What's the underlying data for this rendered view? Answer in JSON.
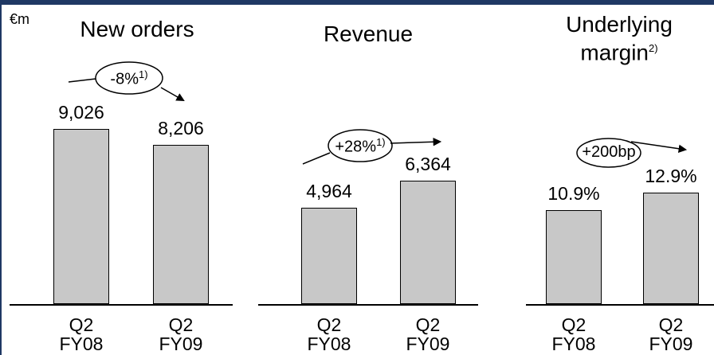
{
  "unit": "€m",
  "chart_data": [
    {
      "type": "bar",
      "title": "New orders",
      "annotation": "-8%",
      "annotation_note": "1)",
      "categories": [
        "Q2 FY08",
        "Q2 FY09"
      ],
      "values": [
        9026,
        8206
      ],
      "value_labels": [
        "9,026",
        "8,206"
      ],
      "color": "#c8c8c8",
      "ylim": [
        0,
        10000
      ]
    },
    {
      "type": "bar",
      "title": "Revenue",
      "annotation": "+28%",
      "annotation_note": "1)",
      "categories": [
        "Q2 FY08",
        "Q2 FY09"
      ],
      "values": [
        4964,
        6364
      ],
      "value_labels": [
        "4,964",
        "6,364"
      ],
      "color": "#c8c8c8",
      "ylim": [
        0,
        10000
      ]
    },
    {
      "type": "bar",
      "title": "Underlying margin",
      "title_note": "2)",
      "annotation": "+200bp",
      "categories": [
        "Q2 FY08",
        "Q2 FY09"
      ],
      "values": [
        10.9,
        12.9
      ],
      "value_labels": [
        "10.9%",
        "12.9%"
      ],
      "color": "#c8c8c8",
      "ylim": [
        0,
        22.5
      ]
    }
  ]
}
